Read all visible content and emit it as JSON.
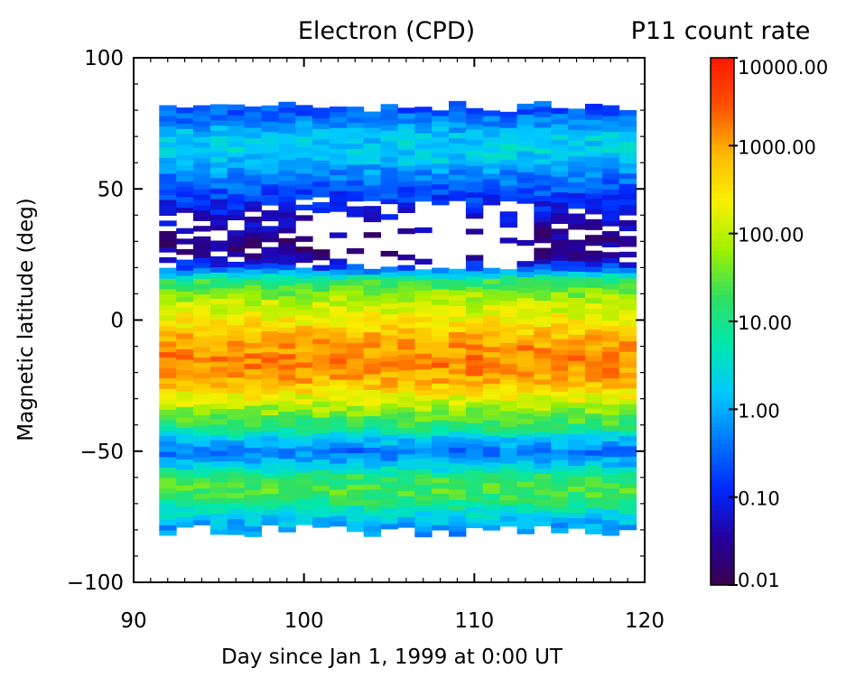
{
  "chart_data": {
    "type": "heatmap",
    "title_left": "Electron (CPD)",
    "title_right": "P11 count rate",
    "xlabel": "Day since Jan 1, 1999 at 0:00 UT",
    "ylabel": "Magnetic latitude (deg)",
    "xlim": [
      90,
      120
    ],
    "ylim": [
      -100,
      100
    ],
    "x_ticks": [
      "90",
      "100",
      "110",
      "120"
    ],
    "y_ticks": [
      "100",
      "50",
      "0",
      "−50",
      "−100"
    ],
    "x_tick_values": [
      90,
      100,
      110,
      120
    ],
    "y_tick_values": [
      100,
      50,
      0,
      -50,
      -100
    ],
    "colorbar": {
      "scale": "log",
      "range": [
        0.01,
        10000
      ],
      "tick_values": [
        10000,
        1000,
        100,
        10,
        1,
        0.1,
        0.01
      ],
      "tick_labels": [
        "10000.00",
        "1000.00",
        "100.00",
        "10.00",
        "1.00",
        "0.10",
        "0.01"
      ],
      "colormap": [
        "#3a0050",
        "#2400a0",
        "#0028ff",
        "#0078ff",
        "#00c8ff",
        "#00e8b0",
        "#30e060",
        "#a0f000",
        "#f8f000",
        "#ffb800",
        "#ff5000",
        "#ff1800"
      ]
    },
    "data_extent": {
      "day_min": 91.5,
      "day_max": 119.5,
      "lat_min": -83,
      "lat_max": 82
    },
    "latitude_profile": [
      {
        "lat": 80,
        "log10_rate": -0.6
      },
      {
        "lat": 75,
        "log10_rate": -0.2
      },
      {
        "lat": 70,
        "log10_rate": 0.2
      },
      {
        "lat": 65,
        "log10_rate": 0.35
      },
      {
        "lat": 60,
        "log10_rate": 0.1
      },
      {
        "lat": 55,
        "log10_rate": -0.3
      },
      {
        "lat": 50,
        "log10_rate": -0.6
      },
      {
        "lat": 45,
        "log10_rate": -0.9
      },
      {
        "lat": 40,
        "log10_rate": -1.2
      },
      {
        "lat": 35,
        "log10_rate": -1.5
      },
      {
        "lat": 30,
        "log10_rate": -1.6
      },
      {
        "lat": 25,
        "log10_rate": -1.6
      },
      {
        "lat": 20,
        "log10_rate": -0.7
      },
      {
        "lat": 15,
        "log10_rate": 1.2
      },
      {
        "lat": 10,
        "log10_rate": 1.7
      },
      {
        "lat": 5,
        "log10_rate": 2.1
      },
      {
        "lat": 0,
        "log10_rate": 2.4
      },
      {
        "lat": -5,
        "log10_rate": 2.8
      },
      {
        "lat": -10,
        "log10_rate": 3.05
      },
      {
        "lat": -15,
        "log10_rate": 3.2
      },
      {
        "lat": -20,
        "log10_rate": 3.1
      },
      {
        "lat": -25,
        "log10_rate": 2.75
      },
      {
        "lat": -30,
        "log10_rate": 2.2
      },
      {
        "lat": -35,
        "log10_rate": 1.7
      },
      {
        "lat": -40,
        "log10_rate": 1.2
      },
      {
        "lat": -45,
        "log10_rate": 0.3
      },
      {
        "lat": -50,
        "log10_rate": -0.4
      },
      {
        "lat": -55,
        "log10_rate": 0.2
      },
      {
        "lat": -60,
        "log10_rate": 1.2
      },
      {
        "lat": -65,
        "log10_rate": 1.4
      },
      {
        "lat": -70,
        "log10_rate": 1.0
      },
      {
        "lat": -75,
        "log10_rate": 0.3
      },
      {
        "lat": -80,
        "log10_rate": -0.2
      }
    ]
  }
}
